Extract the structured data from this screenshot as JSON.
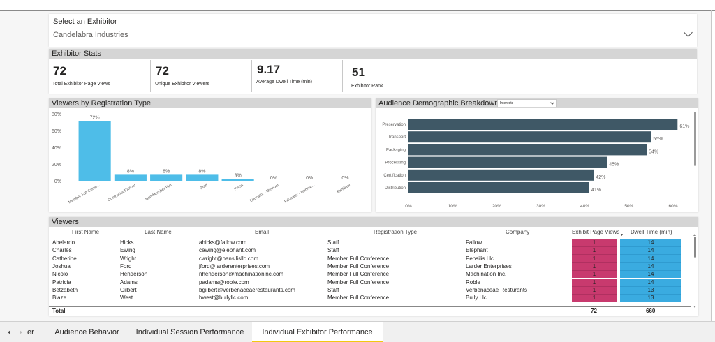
{
  "slicer": {
    "title": "Select an Exhibitor",
    "value": "Candelabra Industries"
  },
  "stats": {
    "header": "Exhibitor Stats",
    "kpis": [
      {
        "value": "72",
        "label": "Total Exhibitor Page Views"
      },
      {
        "value": "72",
        "label": "Unique Exhibitor Viewers"
      },
      {
        "value": "9.17",
        "label": "Average Dwell Time (min)"
      },
      {
        "value": "51",
        "label": "Exhibitor Rank"
      }
    ]
  },
  "reg_chart": {
    "header": "Viewers by Registration Type"
  },
  "dem_chart": {
    "header": "Audience Demographic Breakdown",
    "dropdown_value": "Interests"
  },
  "viewers": {
    "header": "Viewers",
    "columns": [
      "First Name",
      "Last Name",
      "Email",
      "Registration Type",
      "Company",
      "Exhibit Page Views",
      "Dwell Time (min)"
    ],
    "rows": [
      [
        "Abelardo",
        "Hicks",
        "ahicks@fallow.com",
        "Staff",
        "Fallow",
        "1",
        "14"
      ],
      [
        "Charles",
        "Ewing",
        "cewing@elephant.com",
        "Staff",
        "Elephant",
        "1",
        "14"
      ],
      [
        "Catherine",
        "Wright",
        "cwright@pensilisllc.com",
        "Member Full Conference",
        "Pensilis Llc",
        "1",
        "14"
      ],
      [
        "Joshua",
        "Ford",
        "jford@larderenterprises.com",
        "Member Full Conference",
        "Larder Enterprises",
        "1",
        "14"
      ],
      [
        "Nicolo",
        "Henderson",
        "nhenderson@machinationinc.com",
        "Member Full Conference",
        "Machination Inc.",
        "1",
        "14"
      ],
      [
        "Patricia",
        "Adams",
        "padams@roble.com",
        "Member Full Conference",
        "Roble",
        "1",
        "14"
      ],
      [
        "Betzabeth",
        "Gilbert",
        "bgilbert@verbenaceaerestaurants.com",
        "Staff",
        "Verbenaceae Resturants",
        "1",
        "13"
      ],
      [
        "Blaze",
        "West",
        "bwest@bullyllc.com",
        "Member Full Conference",
        "Bully Llc",
        "1",
        "13"
      ]
    ],
    "total_label": "Total",
    "total_views": "72",
    "total_dwell": "660"
  },
  "tabs": [
    {
      "label": "er"
    },
    {
      "label": "Audience Behavior"
    },
    {
      "label": "Individual Session Performance"
    },
    {
      "label": "Individual Exhibitor Performance",
      "active": true
    }
  ],
  "colors": {
    "bar_blue": "#4ebde8",
    "bar_dark": "#3f5866",
    "views_bar": "#c83a6e",
    "dwell_bar": "#3aabe0",
    "active_tab_accent": "#f2c811"
  },
  "chart_data": [
    {
      "type": "bar",
      "categories": [
        "Member Full Confe...",
        "Contractor/Partner",
        "Non-Member Full",
        "Staff",
        "Press",
        "Educator - Member",
        "Educator - Nonme...",
        "Exhibitor"
      ],
      "values": [
        72,
        8,
        8,
        8,
        3,
        0,
        0,
        0
      ],
      "value_labels": [
        "72%",
        "8%",
        "8%",
        "8%",
        "3%",
        "0%",
        "0%",
        "0%"
      ],
      "yticks": [
        "80%",
        "60%",
        "40%",
        "20%",
        "0%"
      ],
      "ylim": [
        0,
        80
      ]
    },
    {
      "type": "bar",
      "orientation": "horizontal",
      "categories": [
        "Preservation",
        "Transport",
        "Packaging",
        "Processing",
        "Certification",
        "Distribution"
      ],
      "values": [
        61,
        55,
        54,
        45,
        42,
        41
      ],
      "value_labels": [
        "61%",
        "55%",
        "54%",
        "45%",
        "42%",
        "41%"
      ],
      "xticks": [
        "0%",
        "10%",
        "20%",
        "30%",
        "40%",
        "50%",
        "60%"
      ],
      "xlim": [
        0,
        60
      ]
    }
  ]
}
